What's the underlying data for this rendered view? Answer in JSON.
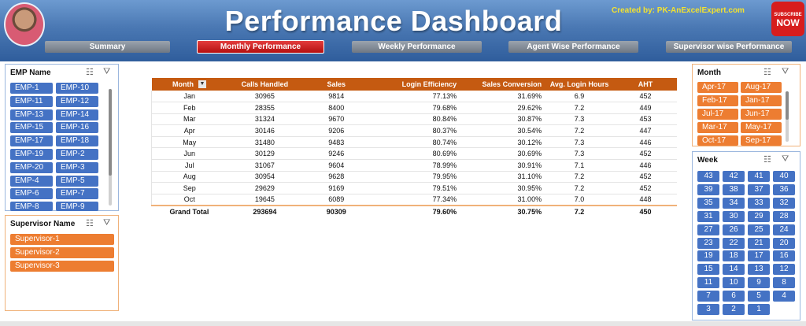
{
  "header": {
    "title": "Performance Dashboard",
    "credit": "Created by: PK-AnExcelExpert.com",
    "subscribe_top": "SUBSCRIBE",
    "subscribe_now": "NOW"
  },
  "tabs": [
    {
      "label": "Summary",
      "active": false
    },
    {
      "label": "Monthly Performance",
      "active": true
    },
    {
      "label": "Weekly Performance",
      "active": false
    },
    {
      "label": "Agent Wise Performance",
      "active": false
    },
    {
      "label": "Supervisor wise Performance",
      "active": false
    }
  ],
  "emp_slicer": {
    "title": "EMP Name",
    "items": [
      "EMP-1",
      "EMP-10",
      "EMP-11",
      "EMP-12",
      "EMP-13",
      "EMP-14",
      "EMP-15",
      "EMP-16",
      "EMP-17",
      "EMP-18",
      "EMP-19",
      "EMP-2",
      "EMP-20",
      "EMP-3",
      "EMP-4",
      "EMP-5",
      "EMP-6",
      "EMP-7",
      "EMP-8",
      "EMP-9"
    ]
  },
  "supervisor_slicer": {
    "title": "Supervisor Name",
    "items": [
      "Supervisor-1",
      "Supervisor-2",
      "Supervisor-3"
    ]
  },
  "month_slicer": {
    "title": "Month",
    "items": [
      "Apr-17",
      "Aug-17",
      "Feb-17",
      "Jan-17",
      "Jul-17",
      "Jun-17",
      "Mar-17",
      "May-17",
      "Oct-17",
      "Sep-17"
    ]
  },
  "week_slicer": {
    "title": "Week",
    "items": [
      "43",
      "42",
      "41",
      "40",
      "39",
      "38",
      "37",
      "36",
      "35",
      "34",
      "33",
      "32",
      "31",
      "30",
      "29",
      "28",
      "27",
      "26",
      "25",
      "24",
      "23",
      "22",
      "21",
      "20",
      "19",
      "18",
      "17",
      "16",
      "15",
      "14",
      "13",
      "12",
      "11",
      "10",
      "9",
      "8",
      "7",
      "6",
      "5",
      "4",
      "3",
      "2",
      "1"
    ]
  },
  "table": {
    "headers": [
      "Month",
      "Calls Handled",
      "Sales",
      "Login Efficiency",
      "Sales Conversion",
      "Avg. Login Hours",
      "AHT"
    ],
    "rows": [
      [
        "Jan",
        "30965",
        "9814",
        "77.13%",
        "31.69%",
        "6.9",
        "452"
      ],
      [
        "Feb",
        "28355",
        "8400",
        "79.68%",
        "29.62%",
        "7.2",
        "449"
      ],
      [
        "Mar",
        "31324",
        "9670",
        "80.84%",
        "30.87%",
        "7.3",
        "453"
      ],
      [
        "Apr",
        "30146",
        "9206",
        "80.37%",
        "30.54%",
        "7.2",
        "447"
      ],
      [
        "May",
        "31480",
        "9483",
        "80.74%",
        "30.12%",
        "7.3",
        "446"
      ],
      [
        "Jun",
        "30129",
        "9246",
        "80.69%",
        "30.69%",
        "7.3",
        "452"
      ],
      [
        "Jul",
        "31067",
        "9604",
        "78.99%",
        "30.91%",
        "7.1",
        "446"
      ],
      [
        "Aug",
        "30954",
        "9628",
        "79.95%",
        "31.10%",
        "7.2",
        "452"
      ],
      [
        "Sep",
        "29629",
        "9169",
        "79.51%",
        "30.95%",
        "7.2",
        "452"
      ],
      [
        "Oct",
        "19645",
        "6089",
        "77.34%",
        "31.00%",
        "7.0",
        "448"
      ]
    ],
    "total": [
      "Grand Total",
      "293694",
      "90309",
      "79.60%",
      "30.75%",
      "7.2",
      "450"
    ]
  },
  "icons": {
    "multiselect": "multi-select-icon",
    "clear_filter": "clear-filter-icon",
    "dropdown": "dropdown-arrow-icon"
  }
}
